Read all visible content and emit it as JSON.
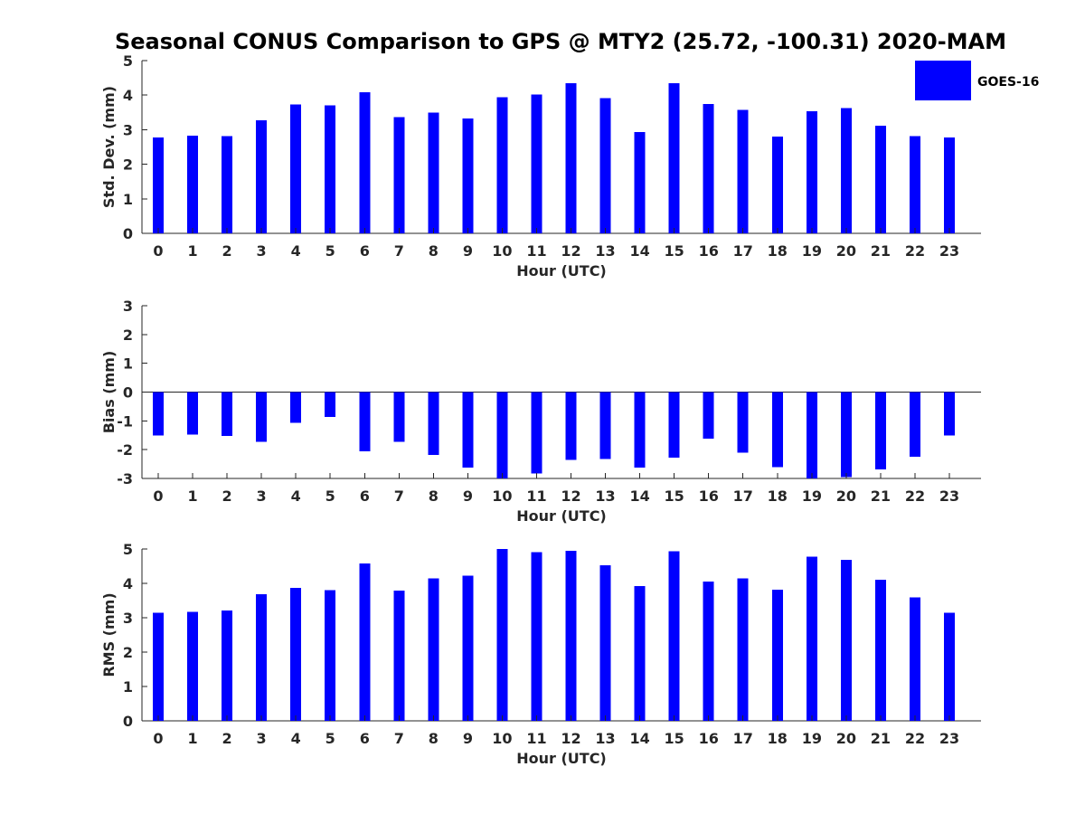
{
  "figure": {
    "title": "Seasonal CONUS Comparison to GPS @ MTY2 (25.72, -100.31) 2020-MAM"
  },
  "legend": {
    "label": "GOES-16",
    "color": "#0000ff",
    "placement": "top-right"
  },
  "chart_data": [
    {
      "type": "bar",
      "xlabel": "Hour (UTC)",
      "ylabel": "Std. Dev. (mm)",
      "ylim": [
        0,
        5
      ],
      "yticks": [
        0,
        1,
        2,
        3,
        4,
        5
      ],
      "categories": [
        "0",
        "1",
        "2",
        "3",
        "4",
        "5",
        "6",
        "7",
        "8",
        "9",
        "10",
        "11",
        "12",
        "13",
        "14",
        "15",
        "16",
        "17",
        "18",
        "19",
        "20",
        "21",
        "22",
        "23"
      ],
      "series": [
        {
          "name": "GOES-16",
          "values": [
            2.77,
            2.83,
            2.82,
            3.27,
            3.73,
            3.7,
            4.09,
            3.37,
            3.5,
            3.32,
            3.94,
            4.02,
            4.35,
            3.92,
            2.93,
            4.35,
            3.74,
            3.57,
            2.8,
            3.53,
            3.62,
            3.11,
            2.81,
            2.77
          ]
        }
      ]
    },
    {
      "type": "bar",
      "xlabel": "Hour (UTC)",
      "ylabel": "Bias (mm)",
      "ylim": [
        -3,
        3
      ],
      "yticks": [
        -3,
        -2,
        -1,
        0,
        1,
        2,
        3
      ],
      "categories": [
        "0",
        "1",
        "2",
        "3",
        "4",
        "5",
        "6",
        "7",
        "8",
        "9",
        "10",
        "11",
        "12",
        "13",
        "14",
        "15",
        "16",
        "17",
        "18",
        "19",
        "20",
        "21",
        "22",
        "23"
      ],
      "series": [
        {
          "name": "GOES-16",
          "values": [
            -1.5,
            -1.47,
            -1.52,
            -1.72,
            -1.07,
            -0.87,
            -2.05,
            -1.72,
            -2.18,
            -2.62,
            -3.0,
            -2.82,
            -2.35,
            -2.32,
            -2.62,
            -2.27,
            -1.62,
            -2.1,
            -2.6,
            -3.0,
            -2.95,
            -2.68,
            -2.25,
            -1.5
          ]
        }
      ]
    },
    {
      "type": "bar",
      "xlabel": "Hour (UTC)",
      "ylabel": "RMS (mm)",
      "ylim": [
        0,
        5
      ],
      "yticks": [
        0,
        1,
        2,
        3,
        4,
        5
      ],
      "categories": [
        "0",
        "1",
        "2",
        "3",
        "4",
        "5",
        "6",
        "7",
        "8",
        "9",
        "10",
        "11",
        "12",
        "13",
        "14",
        "15",
        "16",
        "17",
        "18",
        "19",
        "20",
        "21",
        "22",
        "23"
      ],
      "series": [
        {
          "name": "GOES-16",
          "values": [
            3.14,
            3.17,
            3.21,
            3.69,
            3.87,
            3.8,
            4.58,
            3.79,
            4.14,
            4.22,
            5.0,
            4.91,
            4.95,
            4.52,
            3.92,
            4.93,
            4.05,
            4.14,
            3.82,
            4.77,
            4.69,
            4.1,
            3.59,
            3.14
          ]
        }
      ]
    }
  ]
}
